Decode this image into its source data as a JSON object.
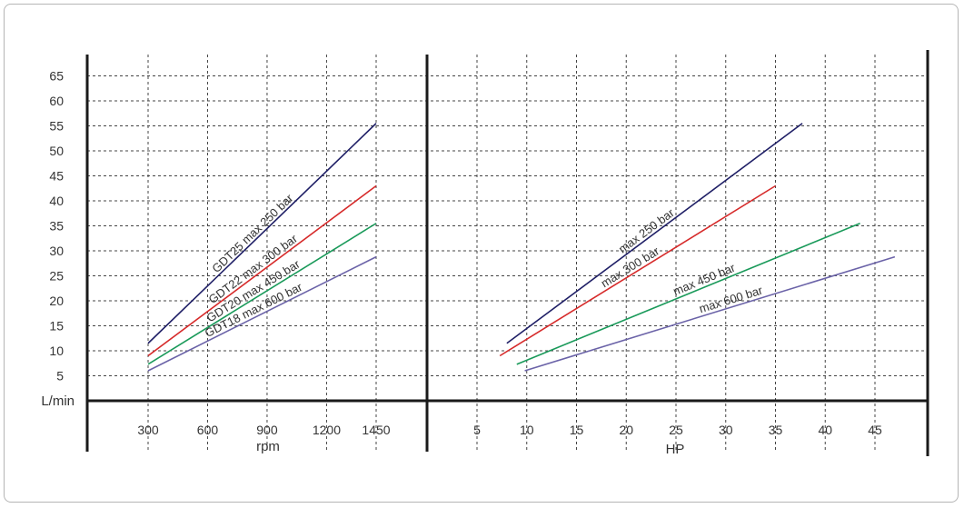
{
  "chart_data": [
    {
      "type": "line",
      "panel": "left",
      "xlabel": "rpm",
      "ylabel": "L/min",
      "x_ticks": [
        "300",
        "600",
        "900",
        "1200",
        "1450"
      ],
      "y_ticks": [
        "5",
        "10",
        "15",
        "20",
        "25",
        "30",
        "35",
        "40",
        "45",
        "50",
        "55",
        "60",
        "65"
      ],
      "xlim": [
        0,
        1600
      ],
      "ylim": [
        0,
        70
      ],
      "grid": true,
      "series": [
        {
          "name": "GDT25 max 250 bar",
          "color": "#1f1f66",
          "x": [
            300,
            1450
          ],
          "y": [
            11.5,
            55.5
          ]
        },
        {
          "name": "GDT22 max 300 bar",
          "color": "#d62a2a",
          "x": [
            300,
            1450
          ],
          "y": [
            9,
            43
          ]
        },
        {
          "name": "GDT20 max 450 bar",
          "color": "#1a9a5a",
          "x": [
            300,
            1450
          ],
          "y": [
            7.3,
            35.5
          ]
        },
        {
          "name": "GDT18 max 600 bar",
          "color": "#6b63a8",
          "x": [
            300,
            1450
          ],
          "y": [
            6,
            28.8
          ]
        }
      ]
    },
    {
      "type": "line",
      "panel": "right",
      "xlabel": "HP",
      "x_ticks": [
        "5",
        "10",
        "15",
        "20",
        "25",
        "30",
        "35",
        "40",
        "45"
      ],
      "xlim": [
        0,
        50
      ],
      "ylim": [
        0,
        70
      ],
      "grid": true,
      "series": [
        {
          "name": "max 250 bar",
          "color": "#1f1f66",
          "x": [
            8,
            37.7
          ],
          "y": [
            11.5,
            55.5
          ]
        },
        {
          "name": "max 300 bar",
          "color": "#d62a2a",
          "x": [
            7.3,
            35
          ],
          "y": [
            9,
            43
          ]
        },
        {
          "name": "max 450 bar",
          "color": "#1a9a5a",
          "x": [
            9,
            43.5
          ],
          "y": [
            7.3,
            35.5
          ]
        },
        {
          "name": "max 600 bar",
          "color": "#6b63a8",
          "x": [
            9.8,
            47
          ],
          "y": [
            6,
            28.8
          ]
        }
      ]
    }
  ]
}
